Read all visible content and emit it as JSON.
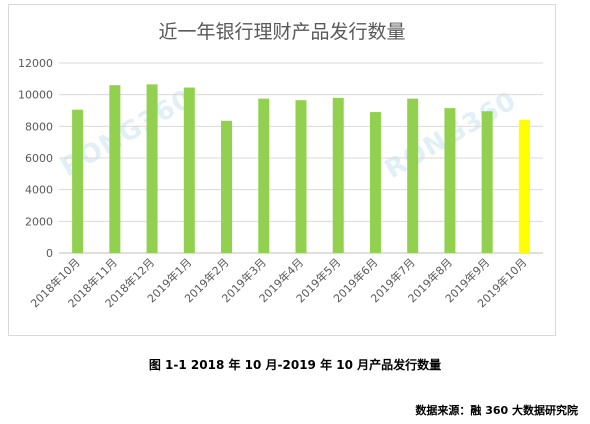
{
  "chart_data": {
    "type": "bar",
    "title": "近一年银行理财产品发行数量",
    "categories": [
      "2018年10月",
      "2018年11月",
      "2018年12月",
      "2019年1月",
      "2019年2月",
      "2019年3月",
      "2019年4月",
      "2019年5月",
      "2019年6月",
      "2019年7月",
      "2019年8月",
      "2019年9月",
      "2019年10月"
    ],
    "values": [
      9050,
      10600,
      10650,
      10450,
      8350,
      9750,
      9650,
      9800,
      8900,
      9750,
      9150,
      8950,
      8400
    ],
    "ylim": [
      0,
      12000
    ],
    "yticks": [
      0,
      2000,
      4000,
      6000,
      8000,
      10000,
      12000
    ],
    "grid": true,
    "legend": "none",
    "colors": {
      "default": "#92d050",
      "highlight": "#ffff00",
      "highlight_index": 12
    }
  },
  "watermark": "RONG360",
  "caption": "图 1-1  2018 年 10 月-2019 年 10 月产品发行数量",
  "source": "数据来源：融 360 大数据研究院"
}
